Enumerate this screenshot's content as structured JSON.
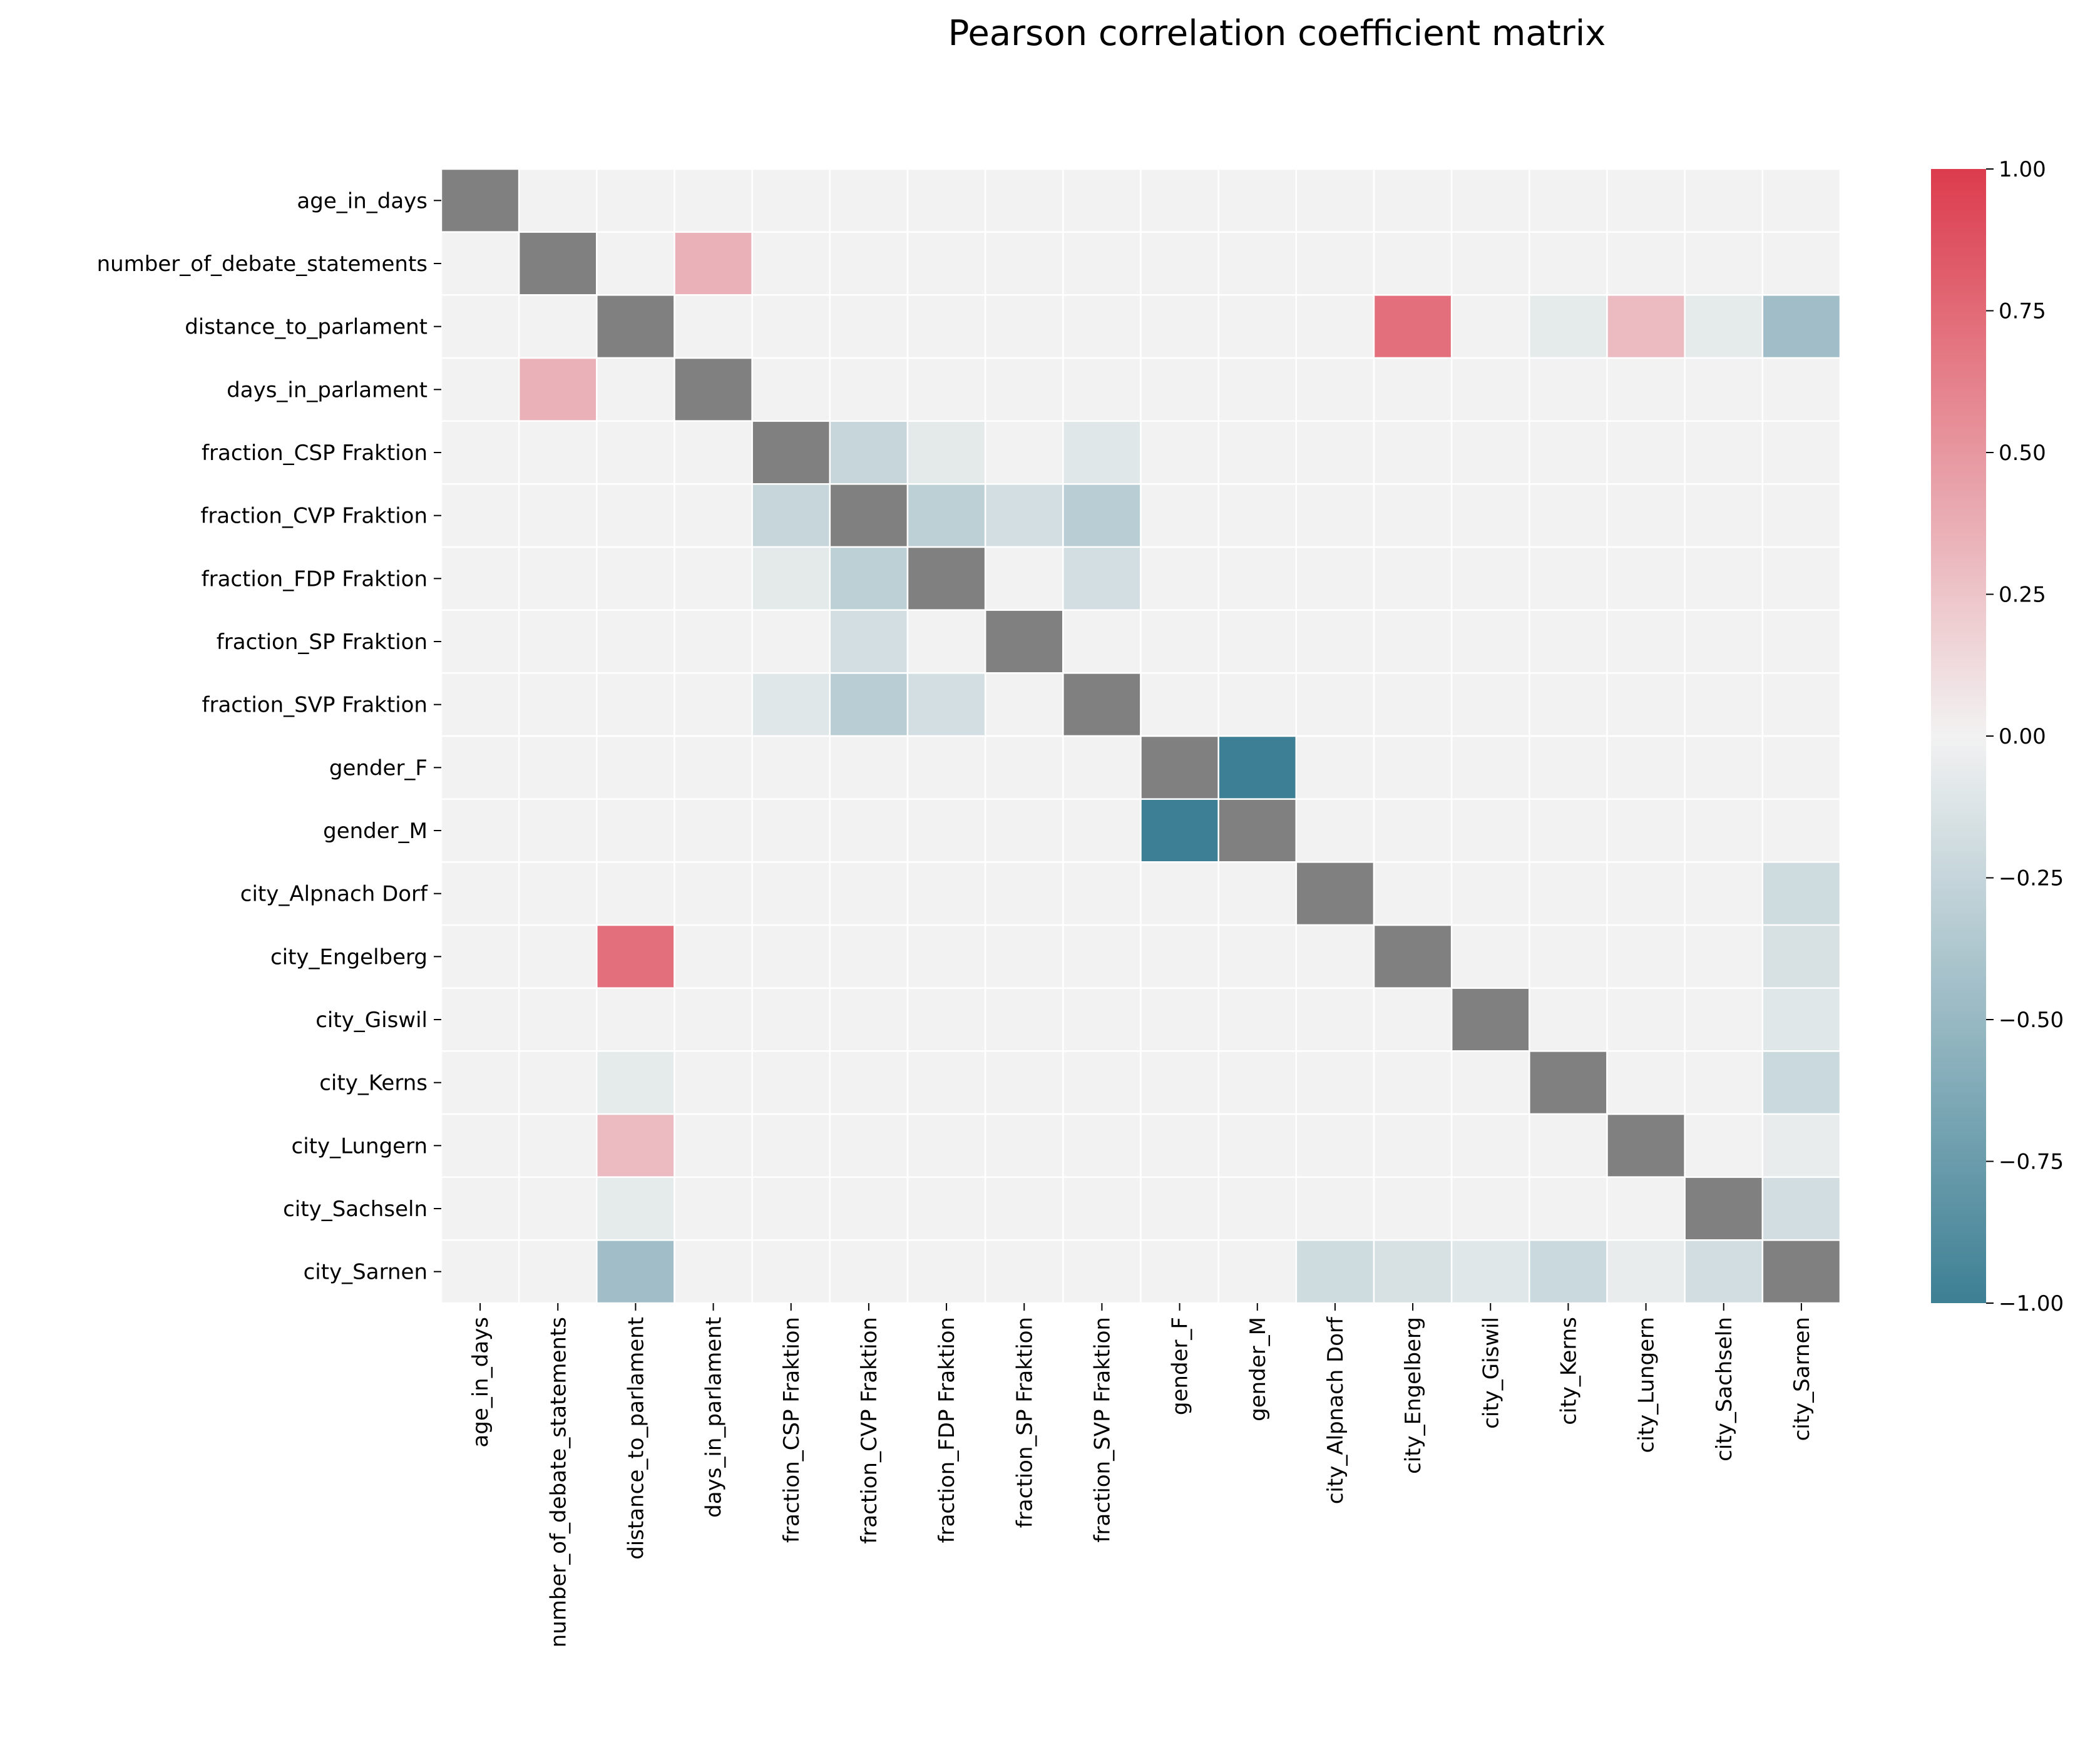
{
  "chart_data": {
    "type": "heatmap",
    "title": "Pearson correlation coefficient matrix",
    "xlabel": "",
    "ylabel": "",
    "labels": [
      "age_in_days",
      "number_of_debate_statements",
      "distance_to_parlament",
      "days_in_parlament",
      "fraction_CSP Fraktion",
      "fraction_CVP Fraktion",
      "fraction_FDP Fraktion",
      "fraction_SP Fraktion",
      "fraction_SVP Fraktion",
      "gender_F",
      "gender_M",
      "city_Alpnach Dorf",
      "city_Engelberg",
      "city_Giswil",
      "city_Kerns",
      "city_Lungern",
      "city_Sachseln",
      "city_Sarnen"
    ],
    "values": [
      [
        1.0,
        0.0,
        0.0,
        0.0,
        0.0,
        0.0,
        0.0,
        0.0,
        0.0,
        0.0,
        0.0,
        0.0,
        0.0,
        0.0,
        0.0,
        0.0,
        0.0,
        0.0
      ],
      [
        0.0,
        1.0,
        0.0,
        0.35,
        0.0,
        0.0,
        0.0,
        0.0,
        0.0,
        0.0,
        0.0,
        0.0,
        0.0,
        0.0,
        0.0,
        0.0,
        0.0,
        0.0
      ],
      [
        0.0,
        0.0,
        1.0,
        0.0,
        0.0,
        0.0,
        0.0,
        0.0,
        0.0,
        0.0,
        0.0,
        0.0,
        0.72,
        0.0,
        -0.07,
        0.3,
        -0.07,
        -0.45
      ],
      [
        0.0,
        0.35,
        0.0,
        1.0,
        0.0,
        0.0,
        0.0,
        0.0,
        0.0,
        0.0,
        0.0,
        0.0,
        0.0,
        0.0,
        0.0,
        0.0,
        0.0,
        0.0
      ],
      [
        0.0,
        0.0,
        0.0,
        0.0,
        1.0,
        -0.24,
        -0.08,
        0.0,
        -0.1,
        0.0,
        0.0,
        0.0,
        0.0,
        0.0,
        0.0,
        0.0,
        0.0,
        0.0
      ],
      [
        0.0,
        0.0,
        0.0,
        0.0,
        -0.24,
        1.0,
        -0.3,
        -0.17,
        -0.32,
        0.0,
        0.0,
        0.0,
        0.0,
        0.0,
        0.0,
        0.0,
        0.0,
        0.0
      ],
      [
        0.0,
        0.0,
        0.0,
        0.0,
        -0.08,
        -0.3,
        1.0,
        0.0,
        -0.17,
        0.0,
        0.0,
        0.0,
        0.0,
        0.0,
        0.0,
        0.0,
        0.0,
        0.0
      ],
      [
        0.0,
        0.0,
        0.0,
        0.0,
        0.0,
        -0.17,
        0.0,
        1.0,
        0.0,
        0.0,
        0.0,
        0.0,
        0.0,
        0.0,
        0.0,
        0.0,
        0.0,
        0.0
      ],
      [
        0.0,
        0.0,
        0.0,
        0.0,
        -0.1,
        -0.32,
        -0.17,
        0.0,
        1.0,
        0.0,
        0.0,
        0.0,
        0.0,
        0.0,
        0.0,
        0.0,
        0.0,
        0.0
      ],
      [
        0.0,
        0.0,
        0.0,
        0.0,
        0.0,
        0.0,
        0.0,
        0.0,
        0.0,
        1.0,
        -1.0,
        0.0,
        0.0,
        0.0,
        0.0,
        0.0,
        0.0,
        0.0
      ],
      [
        0.0,
        0.0,
        0.0,
        0.0,
        0.0,
        0.0,
        0.0,
        0.0,
        0.0,
        -1.0,
        1.0,
        0.0,
        0.0,
        0.0,
        0.0,
        0.0,
        0.0,
        0.0
      ],
      [
        0.0,
        0.0,
        0.0,
        0.0,
        0.0,
        0.0,
        0.0,
        0.0,
        0.0,
        0.0,
        0.0,
        1.0,
        0.0,
        0.0,
        0.0,
        0.0,
        0.0,
        -0.2
      ],
      [
        0.0,
        0.0,
        0.72,
        0.0,
        0.0,
        0.0,
        0.0,
        0.0,
        0.0,
        0.0,
        0.0,
        0.0,
        1.0,
        0.0,
        0.0,
        0.0,
        0.0,
        -0.15
      ],
      [
        0.0,
        0.0,
        0.0,
        0.0,
        0.0,
        0.0,
        0.0,
        0.0,
        0.0,
        0.0,
        0.0,
        0.0,
        0.0,
        1.0,
        0.0,
        0.0,
        0.0,
        -0.1
      ],
      [
        0.0,
        0.0,
        -0.07,
        0.0,
        0.0,
        0.0,
        0.0,
        0.0,
        0.0,
        0.0,
        0.0,
        0.0,
        0.0,
        0.0,
        1.0,
        0.0,
        0.0,
        -0.22
      ],
      [
        0.0,
        0.0,
        0.3,
        0.0,
        0.0,
        0.0,
        0.0,
        0.0,
        0.0,
        0.0,
        0.0,
        0.0,
        0.0,
        0.0,
        0.0,
        1.0,
        0.0,
        -0.05
      ],
      [
        0.0,
        0.0,
        -0.07,
        0.0,
        0.0,
        0.0,
        0.0,
        0.0,
        0.0,
        0.0,
        0.0,
        0.0,
        0.0,
        0.0,
        0.0,
        0.0,
        1.0,
        -0.18
      ],
      [
        0.0,
        0.0,
        -0.45,
        0.0,
        0.0,
        0.0,
        0.0,
        0.0,
        0.0,
        0.0,
        0.0,
        -0.2,
        -0.15,
        -0.1,
        -0.22,
        -0.05,
        -0.18,
        1.0
      ]
    ],
    "diagonal_masked": true,
    "diagonal_color": "#808080",
    "colorscale": {
      "min": -1.0,
      "max": 1.0,
      "low_color": "#3d7f94",
      "center_color": "#f2f2f2",
      "high_color": "#dc3c4d",
      "ticks": [
        1.0,
        0.75,
        0.5,
        0.25,
        0.0,
        -0.25,
        -0.5,
        -0.75,
        -1.0
      ],
      "tick_labels": [
        "1.00",
        "0.75",
        "0.50",
        "0.25",
        "0.00",
        "−0.25",
        "−0.50",
        "−0.75",
        "−1.00"
      ]
    }
  }
}
